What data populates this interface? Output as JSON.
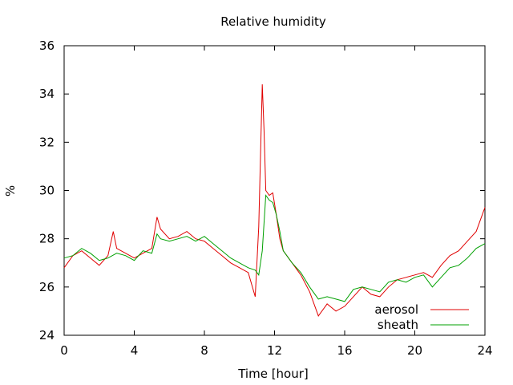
{
  "chart_data": {
    "type": "line",
    "title": "Relative humidity",
    "xlabel": "Time [hour]",
    "ylabel": "%",
    "xlim": [
      0,
      24
    ],
    "ylim": [
      24,
      36
    ],
    "xticks": [
      0,
      4,
      8,
      12,
      16,
      20,
      24
    ],
    "yticks": [
      24,
      26,
      28,
      30,
      32,
      34,
      36
    ],
    "grid": false,
    "legend_position": "bottom-right",
    "series": [
      {
        "name": "aerosol",
        "color": "#e00000",
        "x": [
          0,
          0.5,
          1,
          1.5,
          2,
          2.5,
          2.8,
          3,
          3.5,
          4,
          4.5,
          5,
          5.3,
          5.5,
          6,
          6.5,
          7,
          7.5,
          8,
          8.5,
          9,
          9.5,
          10,
          10.5,
          10.9,
          11.1,
          11.3,
          11.4,
          11.5,
          11.7,
          11.9,
          12.1,
          12.3,
          12.5,
          13,
          13.5,
          14,
          14.5,
          15,
          15.5,
          16,
          16.5,
          17,
          17.5,
          18,
          18.5,
          19,
          19.5,
          20,
          20.5,
          21,
          21.5,
          22,
          22.5,
          23,
          23.5,
          24
        ],
        "y": [
          26.8,
          27.3,
          27.5,
          27.2,
          26.9,
          27.3,
          28.3,
          27.6,
          27.4,
          27.2,
          27.4,
          27.6,
          28.9,
          28.4,
          28.0,
          28.1,
          28.3,
          28.0,
          27.9,
          27.6,
          27.3,
          27.0,
          26.8,
          26.6,
          25.6,
          28.5,
          34.4,
          32.5,
          30.0,
          29.8,
          29.9,
          29.0,
          28.0,
          27.5,
          27.0,
          26.5,
          25.8,
          24.8,
          25.3,
          25.0,
          25.2,
          25.6,
          26.0,
          25.7,
          25.6,
          26.0,
          26.3,
          26.4,
          26.5,
          26.6,
          26.4,
          26.9,
          27.3,
          27.5,
          27.9,
          28.3,
          29.3
        ]
      },
      {
        "name": "sheath",
        "color": "#00a000",
        "x": [
          0,
          0.5,
          1,
          1.5,
          2,
          2.5,
          3,
          3.5,
          4,
          4.5,
          5,
          5.3,
          5.5,
          6,
          6.5,
          7,
          7.5,
          8,
          8.5,
          9,
          9.5,
          10,
          10.5,
          10.9,
          11.1,
          11.3,
          11.5,
          11.7,
          11.9,
          12.1,
          12.3,
          12.5,
          13,
          13.5,
          14,
          14.5,
          15,
          15.5,
          16,
          16.5,
          17,
          17.5,
          18,
          18.5,
          19,
          19.5,
          20,
          20.5,
          21,
          21.5,
          22,
          22.5,
          23,
          23.5,
          24
        ],
        "y": [
          27.2,
          27.3,
          27.6,
          27.4,
          27.1,
          27.2,
          27.4,
          27.3,
          27.1,
          27.5,
          27.4,
          28.2,
          28.0,
          27.9,
          28.0,
          28.1,
          27.9,
          28.1,
          27.8,
          27.5,
          27.2,
          27.0,
          26.8,
          26.7,
          26.5,
          27.5,
          29.8,
          29.6,
          29.5,
          29.0,
          28.3,
          27.5,
          27.0,
          26.6,
          26.0,
          25.5,
          25.6,
          25.5,
          25.4,
          25.9,
          26.0,
          25.9,
          25.8,
          26.2,
          26.3,
          26.2,
          26.4,
          26.5,
          26.0,
          26.4,
          26.8,
          26.9,
          27.2,
          27.6,
          27.8
        ]
      }
    ]
  }
}
